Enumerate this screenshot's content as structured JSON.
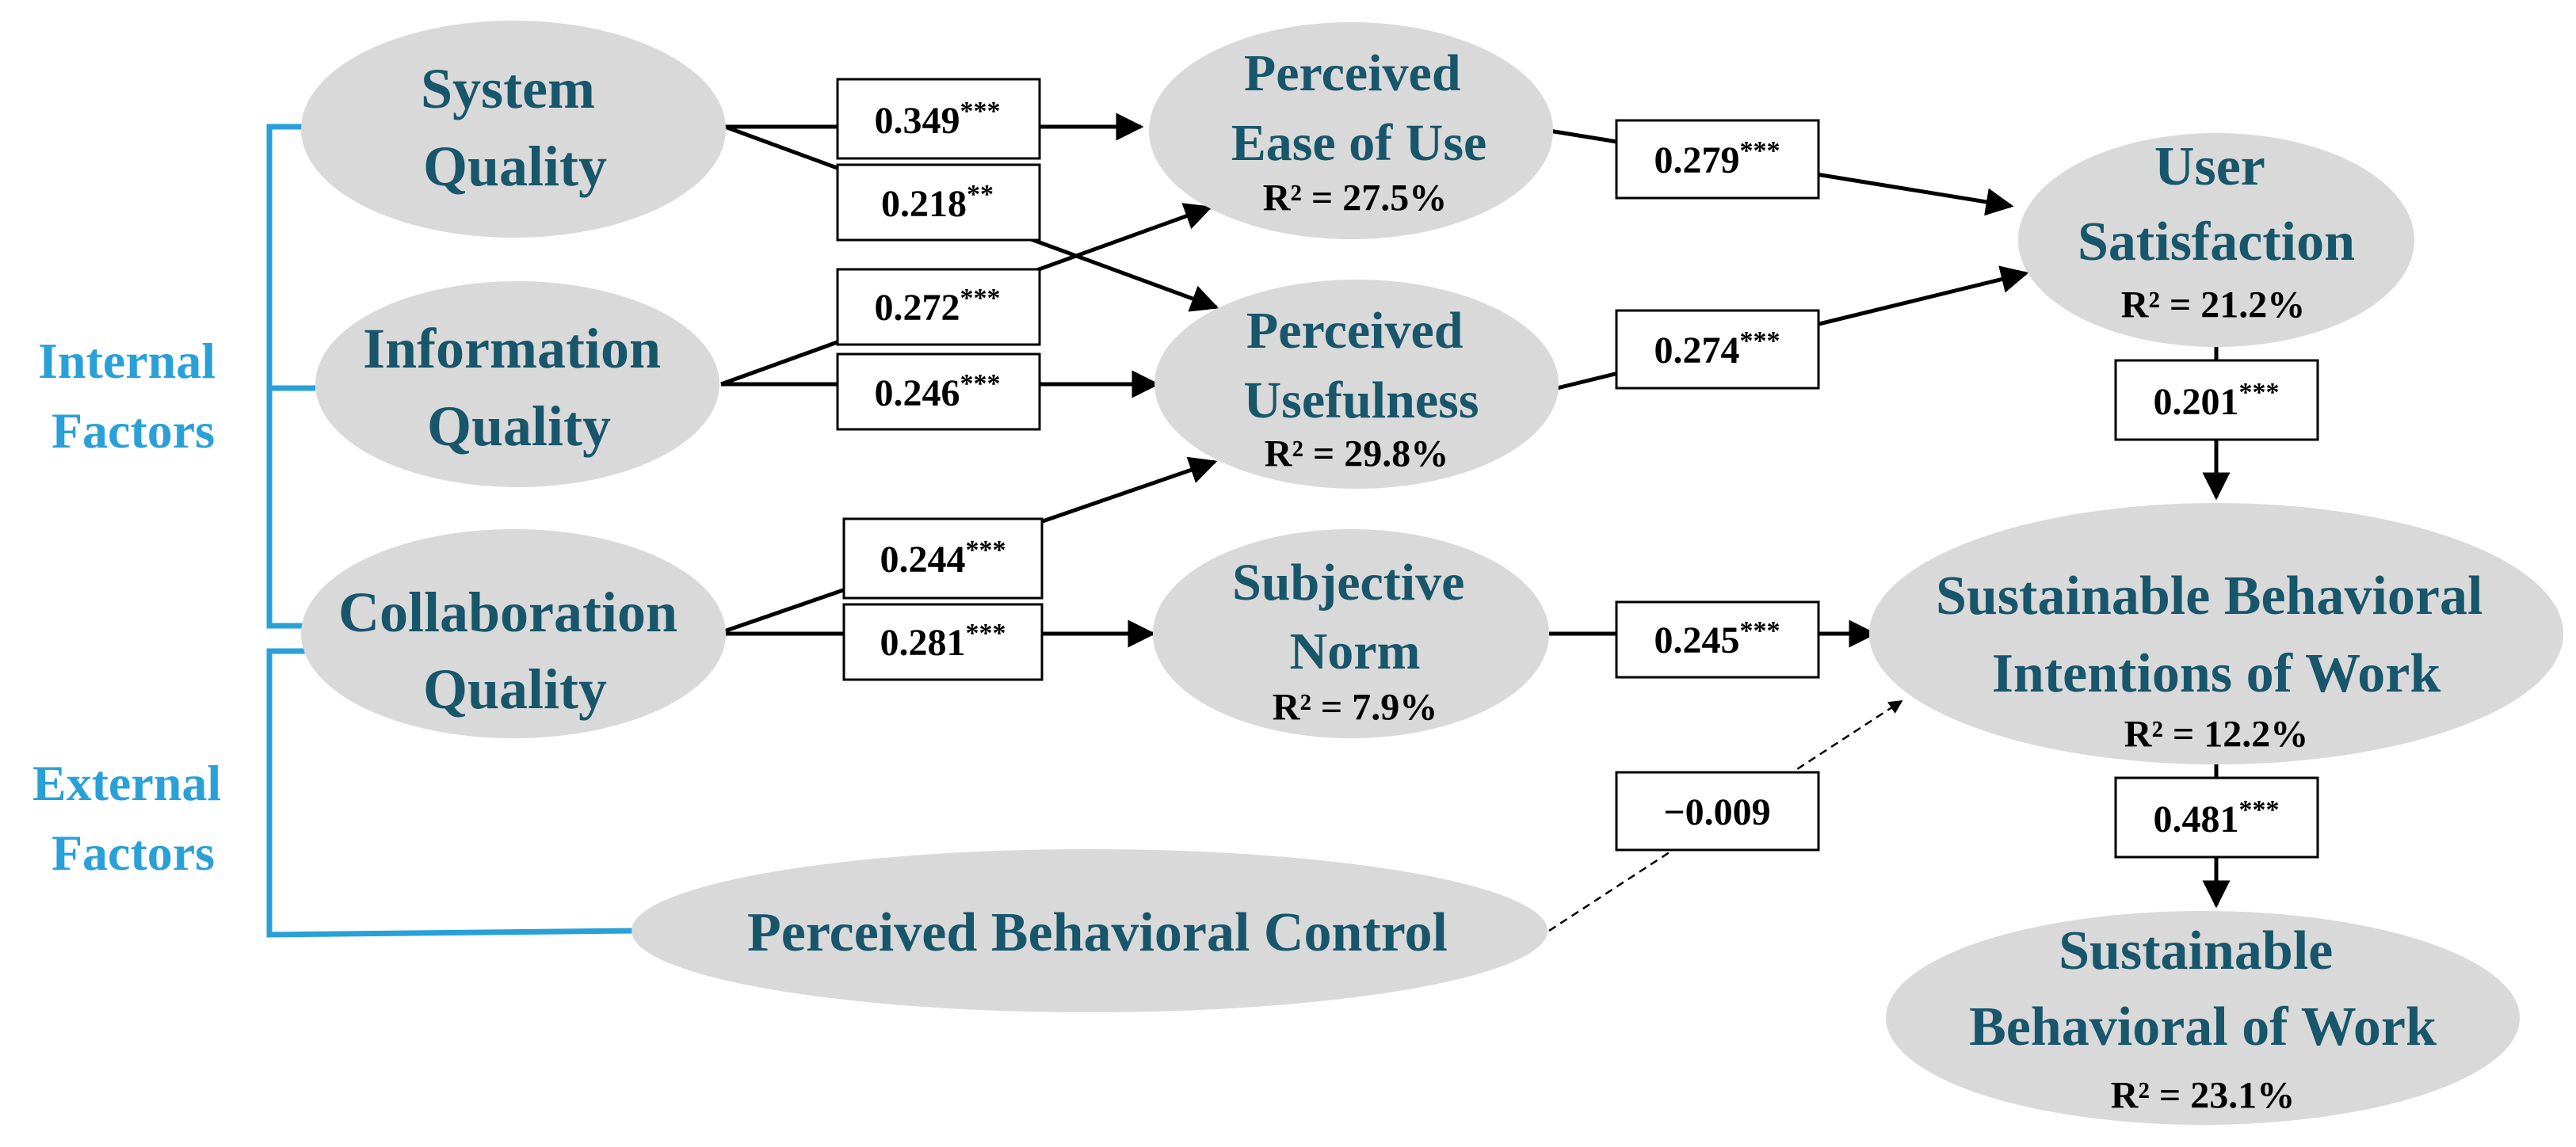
{
  "groups": {
    "internal": [
      "Internal",
      "Factors"
    ],
    "external": [
      "External",
      "Factors"
    ]
  },
  "nodes": {
    "system_quality": {
      "lines": [
        "System",
        "Quality"
      ],
      "r2": ""
    },
    "information_quality": {
      "lines": [
        "Information",
        "Quality"
      ],
      "r2": ""
    },
    "collaboration_quality": {
      "lines": [
        "Collaboration",
        "Quality"
      ],
      "r2": ""
    },
    "perceived_behavioral_control": {
      "lines": [
        "Perceived Behavioral Control"
      ],
      "r2": ""
    },
    "perceived_ease_of_use": {
      "lines": [
        "Perceived",
        "Ease of Use"
      ],
      "r2": "R² = 27.5%"
    },
    "perceived_usefulness": {
      "lines": [
        "Perceived",
        "Usefulness"
      ],
      "r2": "R² = 29.8%"
    },
    "subjective_norm": {
      "lines": [
        "Subjective",
        "Norm"
      ],
      "r2": "R² = 7.9%"
    },
    "user_satisfaction": {
      "lines": [
        "User",
        "Satisfaction"
      ],
      "r2": "R² = 21.2%"
    },
    "sbi_work": {
      "lines": [
        "Sustainable Behavioral",
        "Intentions of Work"
      ],
      "r2": "R² = 12.2%"
    },
    "sb_work": {
      "lines": [
        "Sustainable",
        "Behavioral of Work"
      ],
      "r2": "R² = 23.1%"
    }
  },
  "paths": [
    {
      "from": "system_quality",
      "to": "perceived_ease_of_use",
      "value": "0.349",
      "sig": "***"
    },
    {
      "from": "system_quality",
      "to": "perceived_usefulness",
      "value": "0.218",
      "sig": "**"
    },
    {
      "from": "information_quality",
      "to": "perceived_ease_of_use",
      "value": "0.272",
      "sig": "***"
    },
    {
      "from": "information_quality",
      "to": "perceived_usefulness",
      "value": "0.246",
      "sig": "***"
    },
    {
      "from": "collaboration_quality",
      "to": "perceived_usefulness",
      "value": "0.244",
      "sig": "***"
    },
    {
      "from": "collaboration_quality",
      "to": "subjective_norm",
      "value": "0.281",
      "sig": "***"
    },
    {
      "from": "perceived_ease_of_use",
      "to": "user_satisfaction",
      "value": "0.279",
      "sig": "***"
    },
    {
      "from": "perceived_usefulness",
      "to": "user_satisfaction",
      "value": "0.274",
      "sig": "***"
    },
    {
      "from": "user_satisfaction",
      "to": "sbi_work",
      "value": "0.201",
      "sig": "***"
    },
    {
      "from": "subjective_norm",
      "to": "sbi_work",
      "value": "0.245",
      "sig": "***"
    },
    {
      "from": "perceived_behavioral_control",
      "to": "sbi_work",
      "value": "−0.009",
      "sig": "",
      "style": "dashed"
    },
    {
      "from": "sbi_work",
      "to": "sb_work",
      "value": "0.481",
      "sig": "***"
    }
  ]
}
